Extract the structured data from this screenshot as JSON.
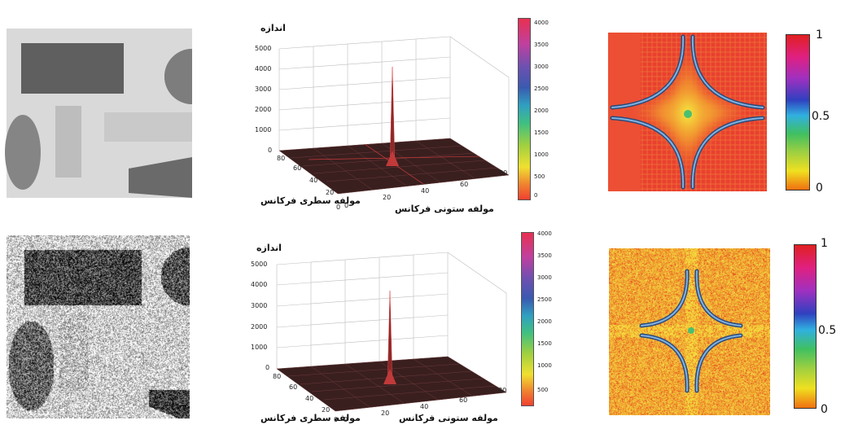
{
  "figure": {
    "rows": [
      {
        "id": "clean",
        "surface": {
          "z_title": "اندازه",
          "x_title": "مولفه سطری فرکانس",
          "y_title": "مولفه ستونی فرکانس",
          "z_ticks": [
            "0",
            "1000",
            "2000",
            "3000",
            "4000",
            "5000"
          ],
          "row_ticks": [
            "0",
            "20",
            "40",
            "60",
            "80"
          ],
          "col_ticks": [
            "0",
            "20",
            "40",
            "60",
            "80"
          ],
          "colorbar_ticks": [
            "0",
            "500",
            "1000",
            "1500",
            "2000",
            "2500",
            "3000",
            "3500",
            "4000"
          ]
        },
        "map": {
          "colorbar_ticks": [
            "0",
            "0.5",
            "1"
          ],
          "background": "#e9402f"
        }
      },
      {
        "id": "noisy",
        "surface": {
          "z_title": "اندازه",
          "x_title": "مولفه سطری فرکانس",
          "y_title": "مولفه ستونی فرکانس",
          "z_ticks": [
            "0",
            "1000",
            "2000",
            "3000",
            "4000",
            "5000"
          ],
          "row_ticks": [
            "0",
            "20",
            "40",
            "60",
            "80"
          ],
          "col_ticks": [
            "0",
            "20",
            "40",
            "60",
            "80"
          ],
          "colorbar_ticks": [
            "500",
            "1000",
            "1500",
            "2000",
            "2500",
            "3000",
            "3500",
            "4000"
          ]
        },
        "map": {
          "colorbar_ticks": [
            "0",
            "0.5",
            "1"
          ],
          "background": "#f0b232"
        }
      }
    ]
  },
  "chart_data": [
    {
      "type": "surface",
      "z_range": [
        0,
        5000
      ],
      "peak": {
        "x": 40,
        "y": 40,
        "z": 4800
      },
      "x_range": [
        0,
        80
      ],
      "y_range": [
        0,
        80
      ],
      "colorbar_range": [
        0,
        4200
      ]
    },
    {
      "type": "surface",
      "z_range": [
        0,
        5000
      ],
      "peak": {
        "x": 40,
        "y": 40,
        "z": 3200
      },
      "x_range": [
        0,
        80
      ],
      "y_range": [
        0,
        80
      ],
      "colorbar_range": [
        0,
        4000
      ]
    }
  ]
}
